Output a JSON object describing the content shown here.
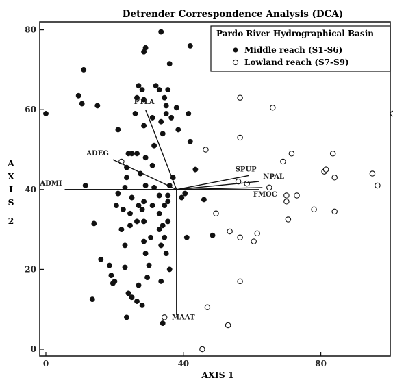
{
  "chart_data": {
    "type": "scatter",
    "title": "Detrender Correspondence Analysis (DCA)",
    "xlabel": "AXIS 1",
    "ylabel": "AXIS 2",
    "xlim": [
      0,
      102
    ],
    "ylim": [
      -1,
      82
    ],
    "xticks": [
      0,
      40,
      80
    ],
    "yticks": [
      0,
      20,
      40,
      60,
      80
    ],
    "legend": {
      "title": "Pardo River Hydrographical Basin",
      "placement": "top-right",
      "items": [
        "Middle reach (S1-S6)",
        "Lowland reach (S7-S9)"
      ]
    },
    "origin": [
      38,
      40
    ],
    "vectors": [
      {
        "label": "PTLA",
        "end": [
          29,
          60
        ]
      },
      {
        "label": "ADEG",
        "end": [
          19.5,
          47.5
        ]
      },
      {
        "label": "ADMI",
        "end": [
          5.5,
          40
        ]
      },
      {
        "label": "SPUP",
        "end": [
          59,
          43.5
        ]
      },
      {
        "label": "NPAL",
        "end": [
          62,
          42
        ]
      },
      {
        "label": "FMOC",
        "end": [
          63,
          40.5
        ]
      },
      {
        "label": "MAAT",
        "end": [
          38,
          8.5
        ]
      }
    ],
    "series": [
      {
        "name": "Middle reach (S1-S6)",
        "marker": "filled",
        "color": "#111111",
        "points": [
          [
            0,
            59
          ],
          [
            9.5,
            63.5
          ],
          [
            10.5,
            61.5
          ],
          [
            11,
            70
          ],
          [
            15,
            61
          ],
          [
            11.5,
            41
          ],
          [
            14,
            31.5
          ],
          [
            13.5,
            12.5
          ],
          [
            16,
            22.5
          ],
          [
            18.5,
            21
          ],
          [
            19,
            18.5
          ],
          [
            19.5,
            16.5
          ],
          [
            20,
            17
          ],
          [
            21,
            55
          ],
          [
            20.5,
            36
          ],
          [
            21,
            39
          ],
          [
            22,
            30
          ],
          [
            22.5,
            35
          ],
          [
            23,
            40.5
          ],
          [
            23.5,
            45.5
          ],
          [
            24,
            49
          ],
          [
            25,
            49
          ],
          [
            23.5,
            43
          ],
          [
            25,
            38
          ],
          [
            24.5,
            34
          ],
          [
            24.5,
            31
          ],
          [
            23,
            26
          ],
          [
            23,
            20.5
          ],
          [
            24,
            14
          ],
          [
            25,
            13
          ],
          [
            23.5,
            8
          ],
          [
            26.5,
            12
          ],
          [
            27,
            16
          ],
          [
            28,
            11
          ],
          [
            26.5,
            32
          ],
          [
            27,
            36
          ],
          [
            28,
            35
          ],
          [
            27.5,
            44
          ],
          [
            26.5,
            49
          ],
          [
            26,
            59
          ],
          [
            26.5,
            63
          ],
          [
            27,
            66
          ],
          [
            28,
            65
          ],
          [
            28.5,
            74.5
          ],
          [
            29,
            75.5
          ],
          [
            28.5,
            62.5
          ],
          [
            28.5,
            56
          ],
          [
            29,
            48
          ],
          [
            29,
            41
          ],
          [
            28.5,
            37
          ],
          [
            28.5,
            32
          ],
          [
            28.5,
            27
          ],
          [
            29,
            24
          ],
          [
            30,
            21
          ],
          [
            29.5,
            18
          ],
          [
            30.5,
            28
          ],
          [
            31,
            36
          ],
          [
            31.5,
            40.5
          ],
          [
            31,
            46
          ],
          [
            31.5,
            51
          ],
          [
            31,
            58
          ],
          [
            32,
            66
          ],
          [
            33,
            65
          ],
          [
            33.5,
            57
          ],
          [
            34,
            54
          ],
          [
            35,
            61
          ],
          [
            35.5,
            65
          ],
          [
            34.5,
            63
          ],
          [
            33,
            38.5
          ],
          [
            33,
            34
          ],
          [
            33,
            30
          ],
          [
            33.5,
            26
          ],
          [
            34,
            31
          ],
          [
            34.5,
            36
          ],
          [
            34.5,
            28
          ],
          [
            35,
            24
          ],
          [
            35.5,
            32
          ],
          [
            35.5,
            37
          ],
          [
            36,
            41
          ],
          [
            36.5,
            58
          ],
          [
            36,
            71.5
          ],
          [
            33.5,
            79.5
          ],
          [
            33.5,
            17
          ],
          [
            36,
            20
          ],
          [
            35.5,
            38.5
          ],
          [
            37,
            43
          ],
          [
            38,
            60.5
          ],
          [
            38.5,
            55
          ],
          [
            39.5,
            38
          ],
          [
            40.5,
            39
          ],
          [
            41,
            28
          ],
          [
            41.5,
            59
          ],
          [
            42,
            52
          ],
          [
            43.5,
            45
          ],
          [
            42,
            76
          ],
          [
            46,
            37.5
          ],
          [
            48.5,
            28.5
          ],
          [
            34,
            6.5
          ],
          [
            35,
            59
          ]
        ]
      },
      {
        "name": "Lowland reach (S7-S9)",
        "marker": "hollow",
        "color": "#111111",
        "points": [
          [
            22,
            47
          ],
          [
            34.5,
            8
          ],
          [
            45.5,
            0
          ],
          [
            47,
            10.5
          ],
          [
            46.5,
            50
          ],
          [
            49.5,
            34
          ],
          [
            53.5,
            29.5
          ],
          [
            53,
            6
          ],
          [
            56.5,
            63
          ],
          [
            56.5,
            53
          ],
          [
            56,
            42
          ],
          [
            56.5,
            28
          ],
          [
            56.5,
            17
          ],
          [
            58.5,
            41.5
          ],
          [
            60.5,
            27
          ],
          [
            61.5,
            29
          ],
          [
            65,
            40.5
          ],
          [
            66,
            60.5
          ],
          [
            69,
            47
          ],
          [
            70,
            38.5
          ],
          [
            70,
            37
          ],
          [
            70.5,
            32.5
          ],
          [
            71.5,
            49
          ],
          [
            73,
            38.5
          ],
          [
            78,
            35
          ],
          [
            81,
            44.5
          ],
          [
            81.5,
            45
          ],
          [
            83.5,
            49
          ],
          [
            84,
            43
          ],
          [
            84,
            34.5
          ],
          [
            95,
            44
          ],
          [
            96.5,
            41
          ],
          [
            101,
            59
          ]
        ]
      }
    ]
  }
}
